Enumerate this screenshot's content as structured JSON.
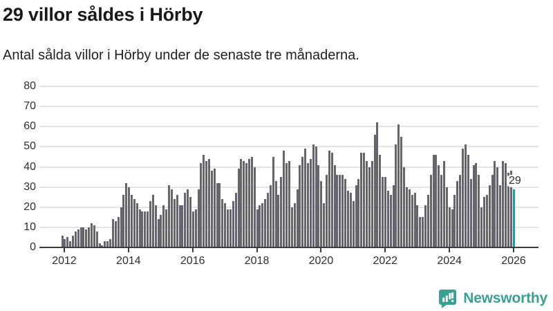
{
  "header": {
    "title": "29 villor såldes i Hörby",
    "subtitle": "Antal sålda villor i Hörby under de senaste tre månaderna."
  },
  "chart_data": {
    "type": "bar",
    "title": "29 villor såldes i Hörby",
    "subtitle": "Antal sålda villor i Hörby under de senaste tre månaderna.",
    "frequency": "monthly",
    "x_start_year": 2012,
    "x_end_year": 2026,
    "x_tick_years": [
      2012,
      2014,
      2016,
      2018,
      2020,
      2022,
      2024,
      2026
    ],
    "y_ticks": [
      0,
      10,
      20,
      30,
      40,
      50,
      60,
      70,
      80
    ],
    "ylim": [
      0,
      80
    ],
    "grid": true,
    "bar_color": "#65656d",
    "highlight_color": "#1d9e9e",
    "values": [
      6,
      4,
      5,
      3,
      6,
      8,
      9,
      10,
      10,
      9,
      10,
      12,
      11,
      8,
      2,
      1,
      3,
      3,
      4,
      14,
      13,
      15,
      20,
      26,
      32,
      30,
      26,
      24,
      22,
      19,
      18,
      18,
      18,
      23,
      26,
      21,
      14,
      16,
      21,
      19,
      31,
      29,
      24,
      26,
      21,
      21,
      27,
      29,
      25,
      18,
      19,
      29,
      42,
      46,
      43,
      44,
      38,
      39,
      32,
      32,
      24,
      22,
      19,
      19,
      23,
      27,
      39,
      44,
      43,
      42,
      44,
      45,
      40,
      19,
      21,
      22,
      24,
      27,
      31,
      45,
      33,
      26,
      35,
      48,
      42,
      43,
      20,
      22,
      29,
      41,
      45,
      49,
      42,
      44,
      51,
      50,
      41,
      33,
      22,
      36,
      48,
      47,
      41,
      36,
      36,
      36,
      34,
      28,
      27,
      23,
      31,
      34,
      47,
      47,
      43,
      40,
      43,
      56,
      62,
      46,
      35,
      35,
      28,
      26,
      31,
      51,
      61,
      55,
      40,
      30,
      29,
      26,
      27,
      21,
      15,
      15,
      21,
      26,
      36,
      46,
      46,
      41,
      36,
      43,
      30,
      20,
      19,
      26,
      33,
      36,
      49,
      51,
      46,
      34,
      41,
      42,
      36,
      20,
      25,
      26,
      31,
      36,
      43,
      40,
      31,
      43,
      42,
      37,
      38,
      29
    ],
    "highlight_last": true,
    "annotation": {
      "text": "29"
    }
  },
  "footer": {
    "brand": "Newsworthy",
    "brand_color": "#3aa092",
    "logo_icon": "newsworthy-speech-bubble-bars-icon"
  }
}
